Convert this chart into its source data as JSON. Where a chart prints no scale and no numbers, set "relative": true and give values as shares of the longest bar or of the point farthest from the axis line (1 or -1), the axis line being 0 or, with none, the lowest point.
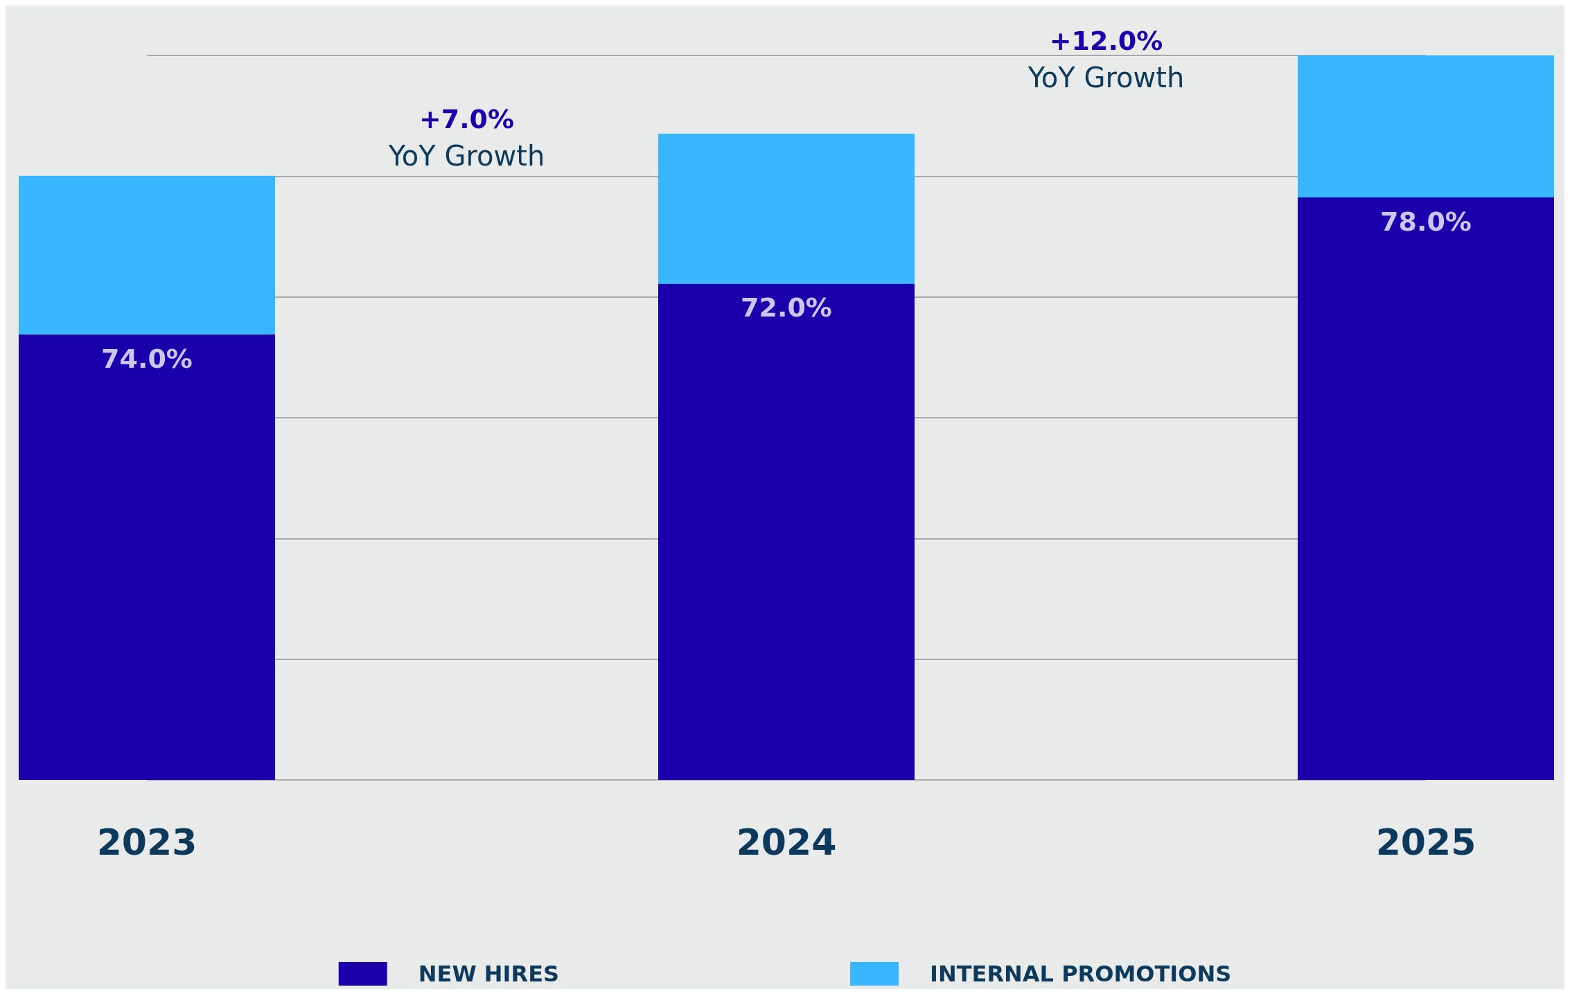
{
  "chart_data": {
    "type": "bar",
    "stacked": true,
    "relative": true,
    "categories": [
      "2023",
      "2024",
      "2025"
    ],
    "series": [
      {
        "name": "NEW HIRES",
        "color": "#1a00aa",
        "values": [
          0.615,
          0.685,
          0.804
        ]
      },
      {
        "name": "INTERNAL PROMOTIONS",
        "color": "#38b6ff",
        "values": [
          0.219,
          0.207,
          0.196
        ]
      }
    ],
    "annotations": [
      "+7.0%",
      "YoY Growth",
      "+12.0%",
      "YoY Growth",
      {
        "text": "74.0%",
        "x": "2023",
        "y": 0.615
      },
      {
        "text": "72.0%",
        "x": "2024",
        "y": 0.685
      },
      {
        "text": "78.0%",
        "x": "2025",
        "y": 0.804
      }
    ],
    "grid": true,
    "legend": "bottom"
  }
}
